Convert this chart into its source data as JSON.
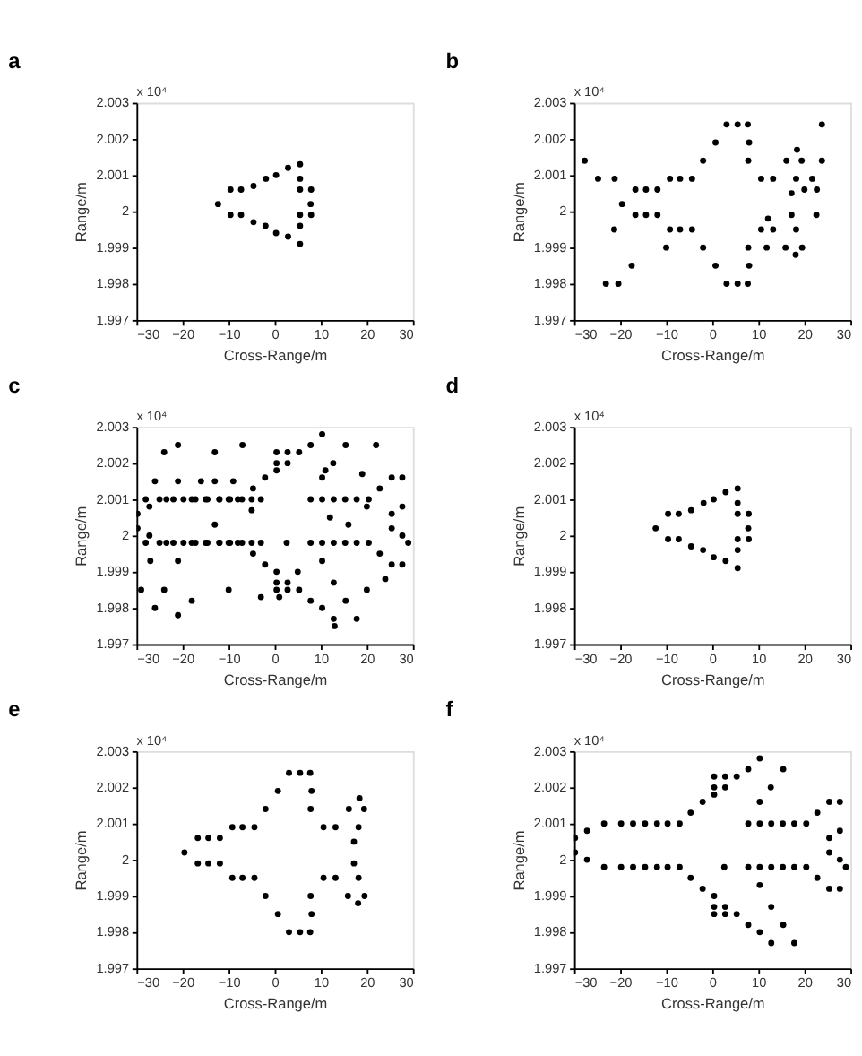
{
  "chart_data": [
    {
      "type": "scatter",
      "title": "a",
      "xlabel": "Cross-Range/m",
      "ylabel": "Range/m",
      "annotations": [
        "x 10⁴"
      ],
      "xlim": [
        -30,
        30
      ],
      "xticks": [
        -30,
        -20,
        -10,
        0,
        10,
        20,
        30
      ],
      "ylim": [
        1.997,
        2.003
      ],
      "yticks": [
        1.997,
        1.998,
        1.999,
        2,
        2.001,
        2.002,
        2.003
      ],
      "grid": false,
      "marker": "circle",
      "series": [
        {
          "color": "#000000",
          "x": [
            -12.3,
            -9.6,
            -7.3,
            -4.6,
            -1.9,
            0.3,
            2.9,
            5.5,
            5.5,
            5.5,
            7.9,
            7.8,
            -9.6,
            -7.3,
            -4.6,
            -2.0,
            0.3,
            2.9,
            5.5,
            5.5,
            5.5,
            7.9
          ],
          "values": [
            2.0002,
            2.0006,
            2.0006,
            2.0007,
            2.0009,
            2.001,
            2.0012,
            2.0013,
            2.0009,
            2.0006,
            2.0006,
            2.0002,
            1.9999,
            1.9999,
            1.9997,
            1.9996,
            1.9994,
            1.9993,
            1.9991,
            1.9996,
            1.9999,
            1.9999
          ]
        }
      ]
    },
    {
      "type": "scatter",
      "title": "b",
      "xlabel": "Cross-Range/m",
      "ylabel": "Range/m",
      "annotations": [
        "x 10⁴"
      ],
      "xlim": [
        -30,
        30
      ],
      "xticks": [
        -30,
        -20,
        -10,
        0,
        10,
        20,
        30
      ],
      "ylim": [
        1.997,
        2.003
      ],
      "yticks": [
        1.997,
        1.998,
        1.999,
        2,
        2.001,
        2.002,
        2.003
      ],
      "grid": false,
      "marker": "circle",
      "series": [
        {
          "color": "#000000",
          "x": [
            3.1,
            5.5,
            7.7,
            0.7,
            8.0,
            -2.0,
            7.8,
            -16.7,
            -14.4,
            -11.9,
            -9.2,
            -7.0,
            -4.4,
            -19.6,
            -16.7,
            -14.4,
            -11.9,
            -9.2,
            -7.0,
            -4.4,
            -2.0,
            7.8,
            0.7,
            8.0,
            3.1,
            5.5,
            7.7,
            18.4,
            16.1,
            19.4,
            10.6,
            13.2,
            18.2,
            17.2,
            17.2,
            10.6,
            13.2,
            18.2,
            15.9,
            19.5,
            18.1,
            -27.7,
            -24.8,
            -21.2,
            -23.1,
            -20.4,
            -21.3,
            -17.5,
            -10.0,
            21.7,
            22.7,
            22.6,
            23.8,
            23.8,
            20.0,
            12.1,
            11.8
          ],
          "values": [
            2.0024,
            2.0024,
            2.0024,
            2.0019,
            2.0019,
            2.0014,
            2.0014,
            2.0006,
            2.0006,
            2.0006,
            2.0009,
            2.0009,
            2.0009,
            2.0002,
            1.9999,
            1.9999,
            1.9999,
            1.9995,
            1.9995,
            1.9995,
            1.999,
            1.999,
            1.9985,
            1.9985,
            1.998,
            1.998,
            1.998,
            2.0017,
            2.0014,
            2.0014,
            2.0009,
            2.0009,
            2.0009,
            2.0005,
            1.9999,
            1.9995,
            1.9995,
            1.9995,
            1.999,
            1.999,
            1.9988,
            2.0014,
            2.0009,
            2.0009,
            1.998,
            1.998,
            1.9995,
            1.9985,
            1.999,
            2.0009,
            2.0006,
            1.9999,
            2.0014,
            2.0024,
            2.0006,
            1.9998,
            1.999
          ]
        }
      ]
    },
    {
      "type": "scatter",
      "title": "c",
      "xlabel": "Cross-Range/m",
      "ylabel": "Range/m",
      "annotations": [
        "x 10⁴"
      ],
      "xlim": [
        -30,
        30
      ],
      "xticks": [
        -30,
        -20,
        -10,
        0,
        10,
        20,
        30
      ],
      "ylim": [
        1.997,
        2.003
      ],
      "yticks": [
        1.997,
        1.998,
        1.999,
        2,
        2.001,
        2.002,
        2.003
      ],
      "grid": false,
      "marker": "circle",
      "series": [
        {
          "color": "#000000",
          "x": [
            -29.8,
            -29.8,
            -27.2,
            -27.2,
            -23.5,
            -19.8,
            -17.2,
            -14.6,
            -12.0,
            -9.7,
            -7.1,
            -23.5,
            -19.8,
            -17.2,
            -14.6,
            -12.0,
            -9.7,
            -7.1,
            -4.7,
            -2.1,
            0.4,
            0.4,
            2.8,
            0.4,
            2.8,
            5.3,
            7.8,
            10.3,
            15.4,
            12.7,
            10.3,
            7.8,
            10.3,
            12.8,
            15.3,
            17.8,
            20.4,
            7.8,
            10.3,
            12.8,
            15.3,
            17.8,
            20.4,
            22.8,
            25.4,
            27.7,
            25.4,
            25.4,
            27.7,
            27.7,
            29.0,
            22.8,
            25.4,
            27.7,
            -4.7,
            -2.1,
            0.4,
            0.4,
            2.8,
            0.4,
            2.8,
            5.3,
            7.8,
            10.3,
            12.8,
            17.8,
            15.4,
            12.8,
            10.3,
            2.6,
            -28,
            -25,
            -22,
            -18,
            -15,
            -12,
            -10,
            -8,
            -5,
            -3,
            -28,
            -25,
            -22,
            -18,
            -15,
            -12,
            -10,
            -8,
            -5,
            -3,
            -21,
            -24,
            -13,
            -7,
            -9,
            -13,
            -16,
            -21,
            -26,
            -27,
            -21,
            -29,
            -24,
            -26,
            -21,
            -18,
            -10,
            -3,
            1,
            5,
            13,
            20,
            22,
            19,
            11,
            -5,
            -13,
            12,
            16,
            20,
            24
          ],
          "values": [
            2.0006,
            2.0002,
            2.0008,
            2.0,
            2.001,
            2.001,
            2.001,
            2.001,
            2.001,
            2.001,
            2.001,
            1.9998,
            1.9998,
            1.9998,
            1.9998,
            1.9998,
            1.9998,
            1.9998,
            2.0013,
            2.0016,
            2.0018,
            2.002,
            2.002,
            2.0023,
            2.0023,
            2.0023,
            2.0025,
            2.0028,
            2.0025,
            2.002,
            2.0016,
            2.001,
            2.001,
            2.001,
            2.001,
            2.001,
            2.001,
            1.9998,
            1.9998,
            1.9998,
            1.9998,
            1.9998,
            1.9998,
            2.0013,
            2.0016,
            2.0016,
            2.0006,
            2.0002,
            2.0008,
            2.0,
            1.9998,
            1.9995,
            1.9992,
            1.9992,
            1.9995,
            1.9992,
            1.999,
            1.9987,
            1.9987,
            1.9985,
            1.9985,
            1.9985,
            1.9982,
            1.998,
            1.9977,
            1.9977,
            1.9982,
            1.9987,
            1.9993,
            1.9998,
            2.001,
            2.001,
            2.001,
            2.001,
            2.001,
            2.001,
            2.001,
            2.001,
            2.001,
            2.001,
            1.9998,
            1.9998,
            1.9998,
            1.9998,
            1.9998,
            1.9998,
            1.9998,
            1.9998,
            1.9998,
            1.9998,
            2.0025,
            2.0023,
            2.0023,
            2.0025,
            2.0015,
            2.0015,
            2.0015,
            2.0015,
            2.0015,
            1.9993,
            1.9993,
            1.9985,
            1.9985,
            1.998,
            1.9978,
            1.9982,
            1.9985,
            1.9983,
            1.9983,
            1.999,
            1.9975,
            1.9985,
            2.0025,
            2.0017,
            2.0018,
            2.0007,
            2.0003,
            2.0005,
            2.0003,
            2.0008,
            1.9988
          ]
        }
      ]
    },
    {
      "type": "scatter",
      "title": "d",
      "xlabel": "Cross-Range/m",
      "ylabel": "Range/m",
      "annotations": [
        "x 10⁴"
      ],
      "xlim": [
        -30,
        30
      ],
      "xticks": [
        -30,
        -20,
        -10,
        0,
        10,
        20,
        30
      ],
      "ylim": [
        1.997,
        2.003
      ],
      "yticks": [
        1.997,
        1.998,
        1.999,
        2,
        2.001,
        2.002,
        2.003
      ],
      "grid": false,
      "marker": "circle",
      "series": [
        {
          "color": "#000000",
          "x": [
            -12.3,
            -9.6,
            -7.3,
            -4.6,
            -1.9,
            0.3,
            2.9,
            5.5,
            5.5,
            5.5,
            7.9,
            7.8,
            -9.6,
            -7.3,
            -4.6,
            -2.0,
            0.3,
            2.9,
            5.5,
            5.5,
            5.5,
            7.9
          ],
          "values": [
            2.0002,
            2.0006,
            2.0006,
            2.0007,
            2.0009,
            2.001,
            2.0012,
            2.0013,
            2.0009,
            2.0006,
            2.0006,
            2.0002,
            1.9999,
            1.9999,
            1.9997,
            1.9996,
            1.9994,
            1.9993,
            1.9991,
            1.9996,
            1.9999,
            1.9999
          ]
        }
      ]
    },
    {
      "type": "scatter",
      "title": "e",
      "xlabel": "Cross-Range/m",
      "ylabel": "Range/m",
      "annotations": [
        "x 10⁴"
      ],
      "xlim": [
        -30,
        30
      ],
      "xticks": [
        -30,
        -20,
        -10,
        0,
        10,
        20,
        30
      ],
      "ylim": [
        1.997,
        2.003
      ],
      "yticks": [
        1.997,
        1.998,
        1.999,
        2,
        2.001,
        2.002,
        2.003
      ],
      "grid": false,
      "marker": "circle",
      "series": [
        {
          "color": "#000000",
          "x": [
            3.1,
            5.5,
            7.7,
            0.7,
            8.0,
            -2.0,
            7.8,
            -16.7,
            -14.4,
            -11.9,
            -9.2,
            -7.0,
            -4.4,
            -19.6,
            -16.7,
            -14.4,
            -11.9,
            -9.2,
            -7.0,
            -4.4,
            -2.0,
            7.8,
            0.7,
            8.0,
            3.1,
            5.5,
            7.7,
            18.4,
            16.1,
            19.4,
            10.6,
            13.2,
            18.2,
            17.2,
            17.2,
            10.6,
            13.2,
            18.2,
            15.9,
            19.5,
            18.1
          ],
          "values": [
            2.0024,
            2.0024,
            2.0024,
            2.0019,
            2.0019,
            2.0014,
            2.0014,
            2.0006,
            2.0006,
            2.0006,
            2.0009,
            2.0009,
            2.0009,
            2.0002,
            1.9999,
            1.9999,
            1.9999,
            1.9995,
            1.9995,
            1.9995,
            1.999,
            1.999,
            1.9985,
            1.9985,
            1.998,
            1.998,
            1.998,
            2.0017,
            2.0014,
            2.0014,
            2.0009,
            2.0009,
            2.0009,
            2.0005,
            1.9999,
            1.9995,
            1.9995,
            1.9995,
            1.999,
            1.999,
            1.9988
          ]
        }
      ]
    },
    {
      "type": "scatter",
      "title": "f",
      "xlabel": "Cross-Range/m",
      "ylabel": "Range/m",
      "annotations": [
        "x 10⁴"
      ],
      "xlim": [
        -30,
        30
      ],
      "xticks": [
        -30,
        -20,
        -10,
        0,
        10,
        20,
        30
      ],
      "ylim": [
        1.997,
        2.003
      ],
      "yticks": [
        1.997,
        1.998,
        1.999,
        2,
        2.001,
        2.002,
        2.003
      ],
      "grid": false,
      "marker": "circle",
      "series": [
        {
          "color": "#000000",
          "x": [
            -29.8,
            -29.8,
            -27.2,
            -27.2,
            -23.5,
            -19.8,
            -17.2,
            -14.6,
            -12.0,
            -9.7,
            -7.1,
            -23.5,
            -19.8,
            -17.2,
            -14.6,
            -12.0,
            -9.7,
            -7.1,
            -4.7,
            -2.1,
            0.4,
            0.4,
            2.8,
            0.4,
            2.8,
            5.3,
            7.8,
            10.3,
            15.4,
            12.7,
            10.3,
            7.8,
            10.3,
            12.8,
            15.3,
            17.8,
            20.4,
            7.8,
            10.3,
            12.8,
            15.3,
            17.8,
            20.4,
            22.8,
            25.4,
            27.7,
            25.4,
            25.4,
            27.7,
            27.7,
            29.0,
            22.8,
            25.4,
            27.7,
            -4.7,
            -2.1,
            0.4,
            0.4,
            2.8,
            0.4,
            2.8,
            5.3,
            7.8,
            10.3,
            12.8,
            17.8,
            15.4,
            12.8,
            10.3,
            2.6
          ],
          "values": [
            2.0006,
            2.0002,
            2.0008,
            2.0,
            2.001,
            2.001,
            2.001,
            2.001,
            2.001,
            2.001,
            2.001,
            1.9998,
            1.9998,
            1.9998,
            1.9998,
            1.9998,
            1.9998,
            1.9998,
            2.0013,
            2.0016,
            2.0018,
            2.002,
            2.002,
            2.0023,
            2.0023,
            2.0023,
            2.0025,
            2.0028,
            2.0025,
            2.002,
            2.0016,
            2.001,
            2.001,
            2.001,
            2.001,
            2.001,
            2.001,
            1.9998,
            1.9998,
            1.9998,
            1.9998,
            1.9998,
            1.9998,
            2.0013,
            2.0016,
            2.0016,
            2.0006,
            2.0002,
            2.0008,
            2.0,
            1.9998,
            1.9995,
            1.9992,
            1.9992,
            1.9995,
            1.9992,
            1.999,
            1.9987,
            1.9987,
            1.9985,
            1.9985,
            1.9985,
            1.9982,
            1.998,
            1.9977,
            1.9977,
            1.9982,
            1.9987,
            1.9993,
            1.9998
          ]
        }
      ]
    }
  ]
}
